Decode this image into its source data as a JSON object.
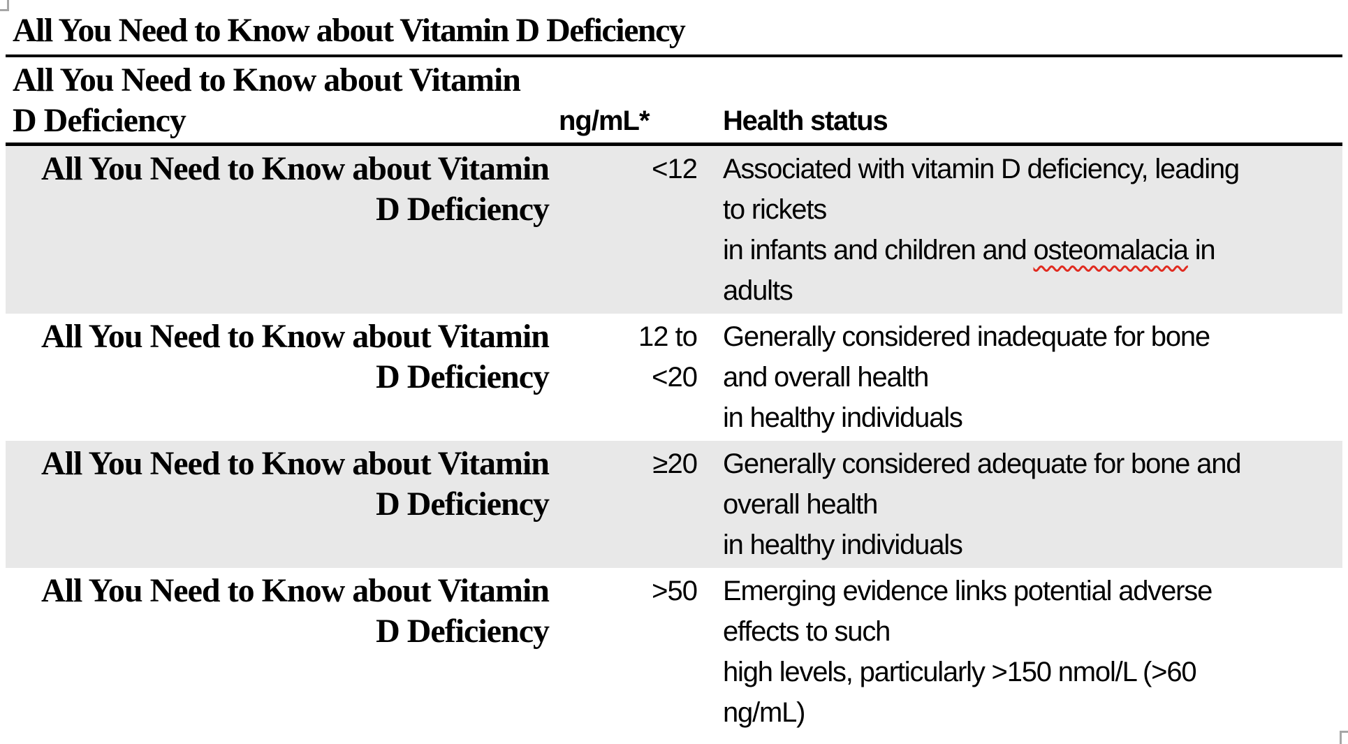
{
  "document": {
    "title": "All You Need to Know about Vitamin D Deficiency"
  },
  "table": {
    "header": {
      "label": "All You Need to Know about Vitamin\nD Deficiency",
      "unit": "ng/mL*",
      "status": "Health status"
    },
    "row_label": "All You Need to Know about Vitamin\nD Deficiency",
    "rows": [
      {
        "range": "<12",
        "status_start": "Associated with vitamin D deficiency, leading\nto rickets",
        "spell_pre": "in infants and children and ",
        "misspelled_word": "osteomalacia",
        "spell_post": " in",
        "status_end": "adults"
      },
      {
        "range": "12 to\n<20",
        "status": "Generally considered inadequate for bone\nand overall health\nin healthy individuals"
      },
      {
        "range": "≥20",
        "status": "Generally considered adequate for bone and\noverall health\nin healthy individuals"
      },
      {
        "range": ">50",
        "status": "Emerging evidence links potential adverse\neffects to such\nhigh levels, particularly >150 nmol/L (>60\nng/mL)"
      }
    ]
  },
  "colors": {
    "text": "#000000",
    "rule": "#000000",
    "row_shade": "#e8e8e8",
    "crop_mark": "#a6a6a6",
    "spellcheck_underline": "#e02b20"
  }
}
